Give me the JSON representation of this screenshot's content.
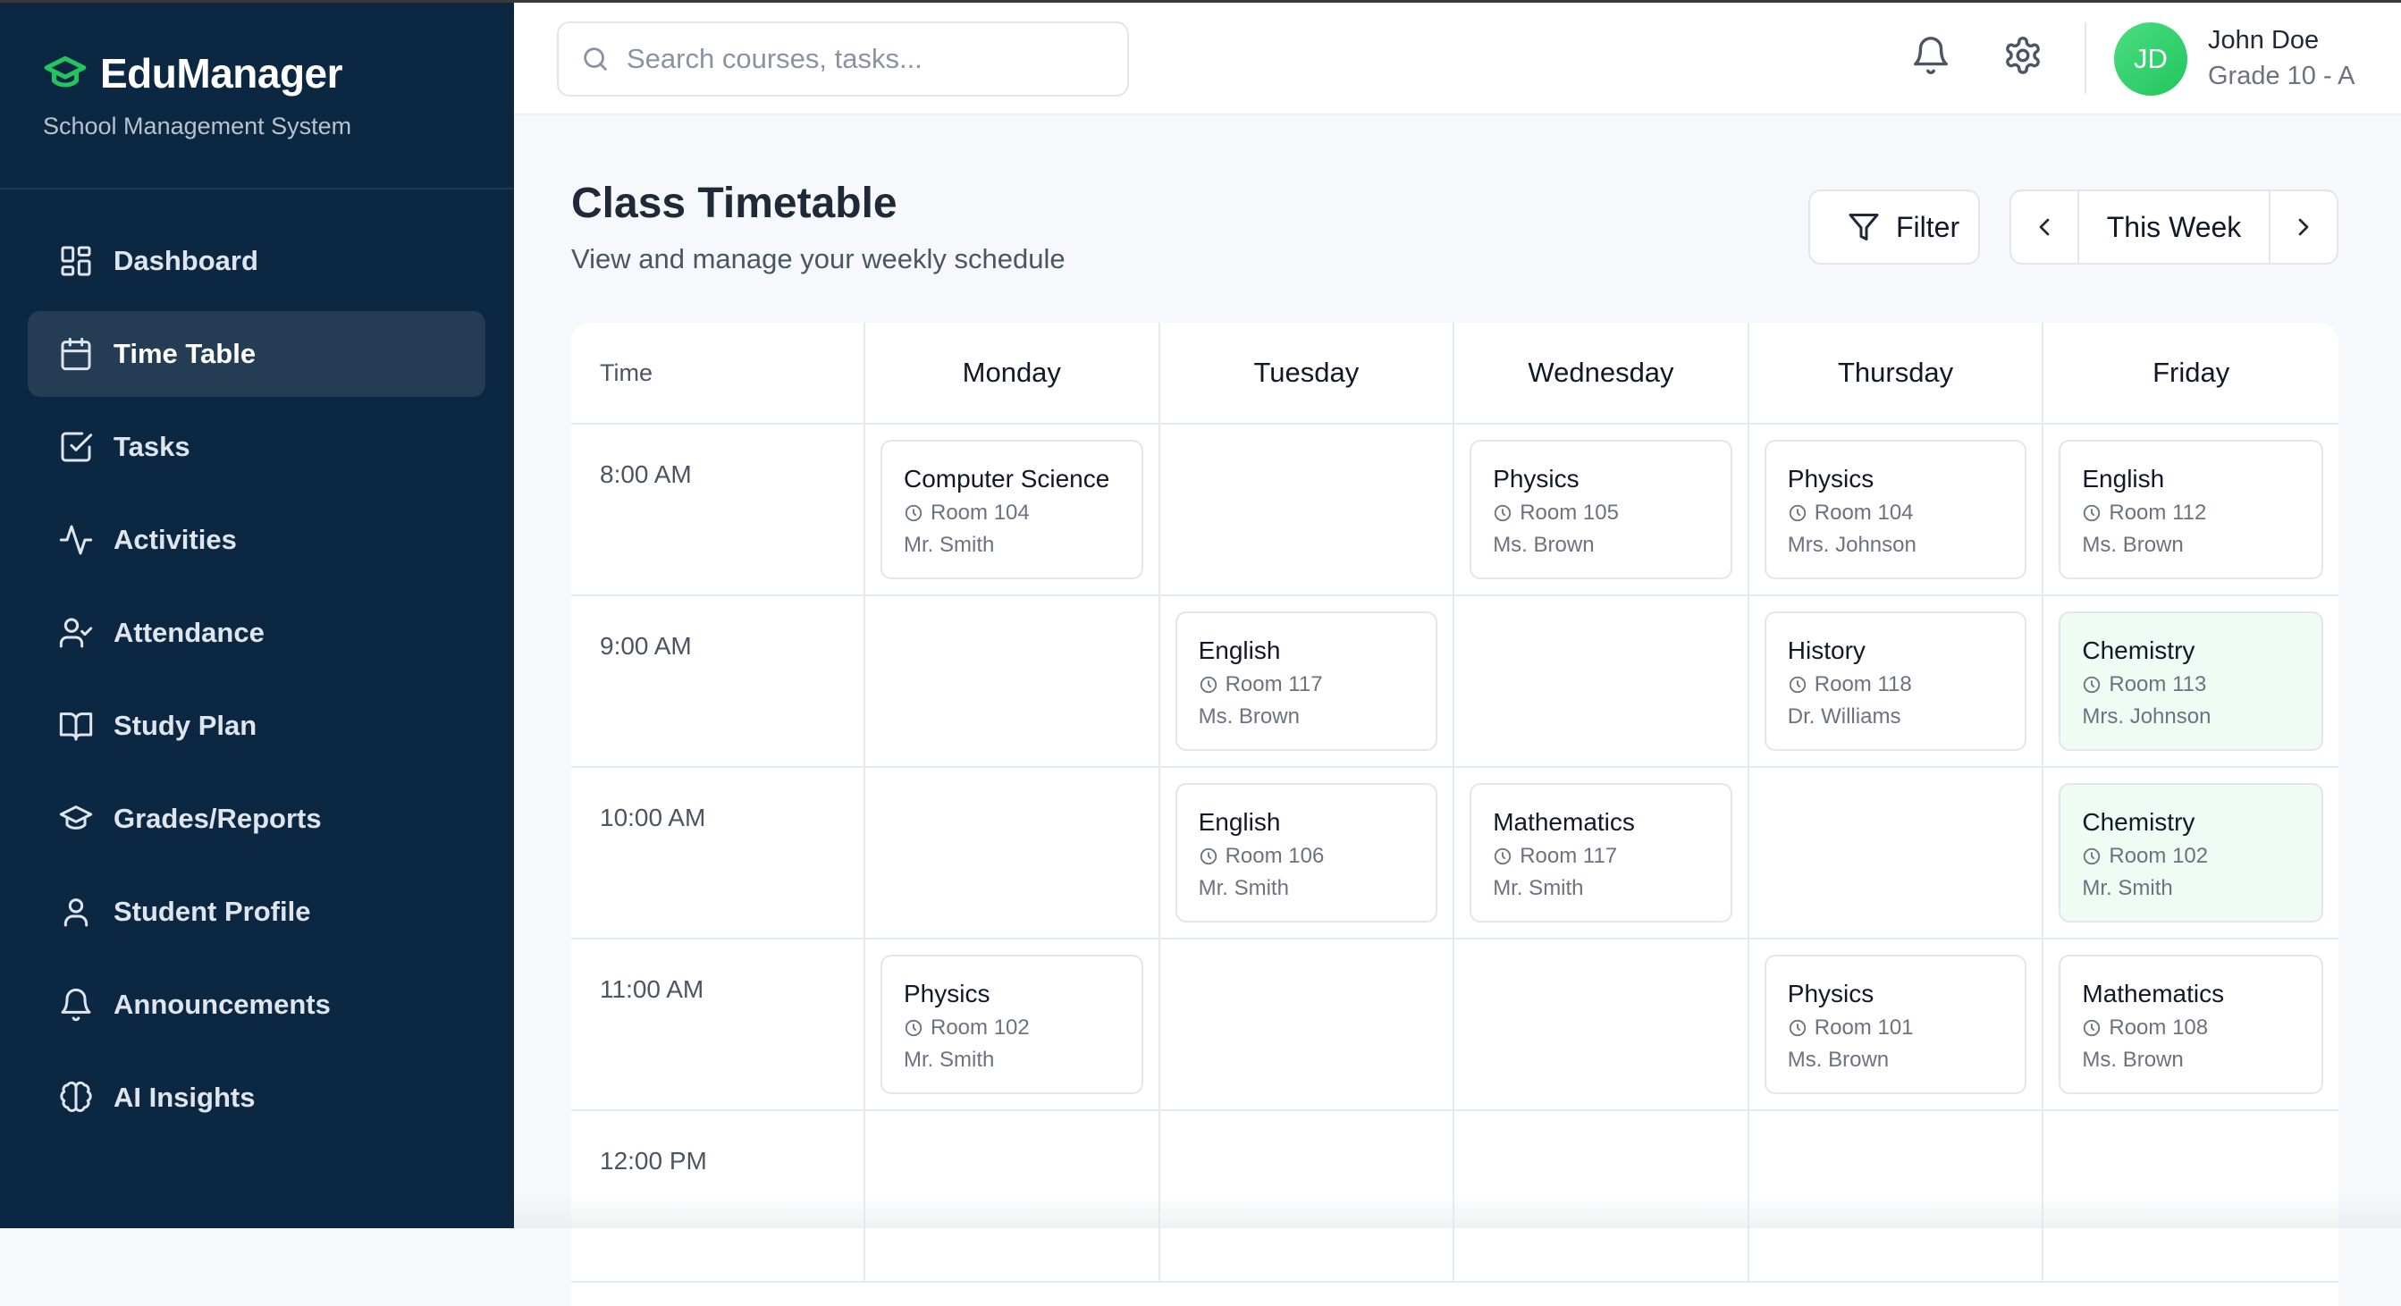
{
  "app": {
    "name": "EduManager",
    "subtitle": "School Management System",
    "accent": "#22c55e",
    "sidebar_bg": "#0c2742"
  },
  "sidebar": {
    "items": [
      {
        "label": "Dashboard",
        "icon": "dashboard-icon",
        "active": false
      },
      {
        "label": "Time Table",
        "icon": "calendar-icon",
        "active": true
      },
      {
        "label": "Tasks",
        "icon": "checkbox-icon",
        "active": false
      },
      {
        "label": "Activities",
        "icon": "activity-icon",
        "active": false
      },
      {
        "label": "Attendance",
        "icon": "user-check-icon",
        "active": false
      },
      {
        "label": "Study Plan",
        "icon": "book-icon",
        "active": false
      },
      {
        "label": "Grades/Reports",
        "icon": "graduation-cap-icon",
        "active": false
      },
      {
        "label": "Student Profile",
        "icon": "user-icon",
        "active": false
      },
      {
        "label": "Announcements",
        "icon": "bell-icon",
        "active": false
      },
      {
        "label": "AI Insights",
        "icon": "brain-icon",
        "active": false
      }
    ]
  },
  "header": {
    "search_placeholder": "Search courses, tasks...",
    "search_value": "",
    "has_notification": true,
    "user": {
      "initials": "JD",
      "name": "John Doe",
      "grade": "Grade 10 - A"
    }
  },
  "page": {
    "title": "Class Timetable",
    "subtitle": "View and manage your weekly schedule",
    "filter_label": "Filter",
    "week_label": "This Week"
  },
  "timetable": {
    "time_header": "Time",
    "days": [
      "Monday",
      "Tuesday",
      "Wednesday",
      "Thursday",
      "Friday"
    ],
    "rows": [
      {
        "time": "8:00 AM",
        "slots": [
          {
            "subject": "Computer Science",
            "room": "Room 104",
            "teacher": "Mr. Smith",
            "highlight": false
          },
          null,
          {
            "subject": "Physics",
            "room": "Room 105",
            "teacher": "Ms. Brown",
            "highlight": false
          },
          {
            "subject": "Physics",
            "room": "Room 104",
            "teacher": "Mrs. Johnson",
            "highlight": false
          },
          {
            "subject": "English",
            "room": "Room 112",
            "teacher": "Ms. Brown",
            "highlight": false
          }
        ]
      },
      {
        "time": "9:00 AM",
        "slots": [
          null,
          {
            "subject": "English",
            "room": "Room 117",
            "teacher": "Ms. Brown",
            "highlight": false
          },
          null,
          {
            "subject": "History",
            "room": "Room 118",
            "teacher": "Dr. Williams",
            "highlight": false
          },
          {
            "subject": "Chemistry",
            "room": "Room 113",
            "teacher": "Mrs. Johnson",
            "highlight": true
          }
        ]
      },
      {
        "time": "10:00 AM",
        "slots": [
          null,
          {
            "subject": "English",
            "room": "Room 106",
            "teacher": "Mr. Smith",
            "highlight": false
          },
          {
            "subject": "Mathematics",
            "room": "Room 117",
            "teacher": "Mr. Smith",
            "highlight": false
          },
          null,
          {
            "subject": "Chemistry",
            "room": "Room 102",
            "teacher": "Mr. Smith",
            "highlight": true
          }
        ]
      },
      {
        "time": "11:00 AM",
        "slots": [
          {
            "subject": "Physics",
            "room": "Room 102",
            "teacher": "Mr. Smith",
            "highlight": false
          },
          null,
          null,
          {
            "subject": "Physics",
            "room": "Room 101",
            "teacher": "Ms. Brown",
            "highlight": false
          },
          {
            "subject": "Mathematics",
            "room": "Room 108",
            "teacher": "Ms. Brown",
            "highlight": false
          }
        ]
      },
      {
        "time": "12:00 PM",
        "slots": [
          null,
          null,
          null,
          null,
          null
        ]
      }
    ]
  }
}
